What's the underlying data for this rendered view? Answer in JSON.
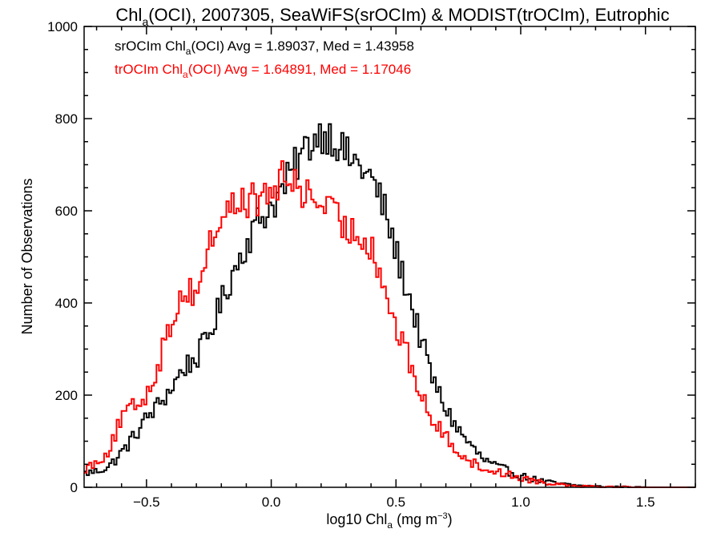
{
  "title": "Chlₐ(OCI), 2007305, SeaWiFS(srOCIm) & MODIST(trOCIm), Eutrophic",
  "title_parts": {
    "pre": "Chl",
    "sub": "a",
    "post": "(OCI), 2007305, SeaWiFS(srOCIm) & MODIST(trOCIm), Eutrophic"
  },
  "colors": {
    "series1": "#000000",
    "series2": "#ff0000",
    "background": "#ffffff"
  },
  "legend_1": {
    "pre": "srOCIm Chl",
    "sub": "a",
    "post": "(OCI) Avg = 1.89037, Med = 1.43958"
  },
  "legend_2": {
    "pre": "trOCIm Chl",
    "sub": "a",
    "post": "(OCI) Avg = 1.64891, Med = 1.17046"
  },
  "xlabel_parts": {
    "pre": "log10 Chl",
    "sub": "a",
    "post": " (mg m",
    "sup": "−3",
    "end": ")"
  },
  "ylabel": "Number of Observations",
  "chart_data": {
    "type": "line",
    "step": true,
    "title": "Chlₐ(OCI), 2007305, SeaWiFS(srOCIm) & MODIST(trOCIm), Eutrophic",
    "xlabel": "log10 Chlₐ (mg m⁻³)",
    "ylabel": "Number of Observations",
    "xlim": [
      -0.75,
      1.7
    ],
    "ylim": [
      0,
      1000
    ],
    "xticks": [
      -0.5,
      0.0,
      0.5,
      1.0,
      1.5
    ],
    "xtick_labels": [
      "−0.5",
      "0.0",
      "0.5",
      "1.0",
      "1.5"
    ],
    "yticks": [
      0,
      200,
      400,
      600,
      800,
      1000
    ],
    "ytick_labels": [
      "0",
      "200",
      "400",
      "600",
      "800",
      "1000"
    ],
    "grid": false,
    "legend_position": "top-left",
    "series": [
      {
        "name": "srOCIm Chlₐ(OCI) Avg = 1.89037, Med = 1.43958",
        "color": "#000000",
        "x": [
          -0.75,
          -0.7,
          -0.65,
          -0.6,
          -0.55,
          -0.5,
          -0.45,
          -0.4,
          -0.35,
          -0.3,
          -0.25,
          -0.2,
          -0.15,
          -0.1,
          -0.05,
          0.0,
          0.05,
          0.1,
          0.15,
          0.2,
          0.25,
          0.3,
          0.35,
          0.4,
          0.45,
          0.5,
          0.55,
          0.6,
          0.65,
          0.7,
          0.75,
          0.8,
          0.85,
          0.9,
          0.95,
          1.0,
          1.05,
          1.1,
          1.15,
          1.2,
          1.25,
          1.3,
          1.35,
          1.4,
          1.5,
          1.6,
          1.7
        ],
        "y": [
          30,
          35,
          45,
          75,
          110,
          150,
          180,
          215,
          260,
          280,
          330,
          400,
          470,
          530,
          580,
          610,
          650,
          700,
          745,
          770,
          760,
          720,
          700,
          670,
          610,
          510,
          420,
          320,
          230,
          170,
          125,
          90,
          60,
          45,
          35,
          25,
          18,
          12,
          8,
          5,
          3,
          2,
          1,
          1,
          0,
          0,
          0
        ]
      },
      {
        "name": "trOCIm Chlₐ(OCI) Avg = 1.64891, Med = 1.17046",
        "color": "#ff0000",
        "x": [
          -0.75,
          -0.7,
          -0.65,
          -0.6,
          -0.55,
          -0.5,
          -0.45,
          -0.4,
          -0.35,
          -0.3,
          -0.25,
          -0.2,
          -0.15,
          -0.1,
          -0.05,
          0.0,
          0.05,
          0.1,
          0.15,
          0.2,
          0.25,
          0.3,
          0.35,
          0.4,
          0.45,
          0.5,
          0.55,
          0.6,
          0.65,
          0.7,
          0.75,
          0.8,
          0.85,
          0.9,
          0.95,
          1.0,
          1.05,
          1.1,
          1.15,
          1.2,
          1.25,
          1.3,
          1.35,
          1.4,
          1.5,
          1.6,
          1.7
        ],
        "y": [
          40,
          55,
          80,
          150,
          175,
          200,
          270,
          360,
          430,
          420,
          520,
          590,
          610,
          625,
          620,
          640,
          670,
          660,
          630,
          620,
          590,
          560,
          550,
          530,
          440,
          345,
          280,
          200,
          140,
          110,
          80,
          55,
          40,
          35,
          28,
          20,
          15,
          10,
          7,
          5,
          3,
          2,
          1,
          1,
          0,
          0,
          0
        ]
      }
    ]
  }
}
